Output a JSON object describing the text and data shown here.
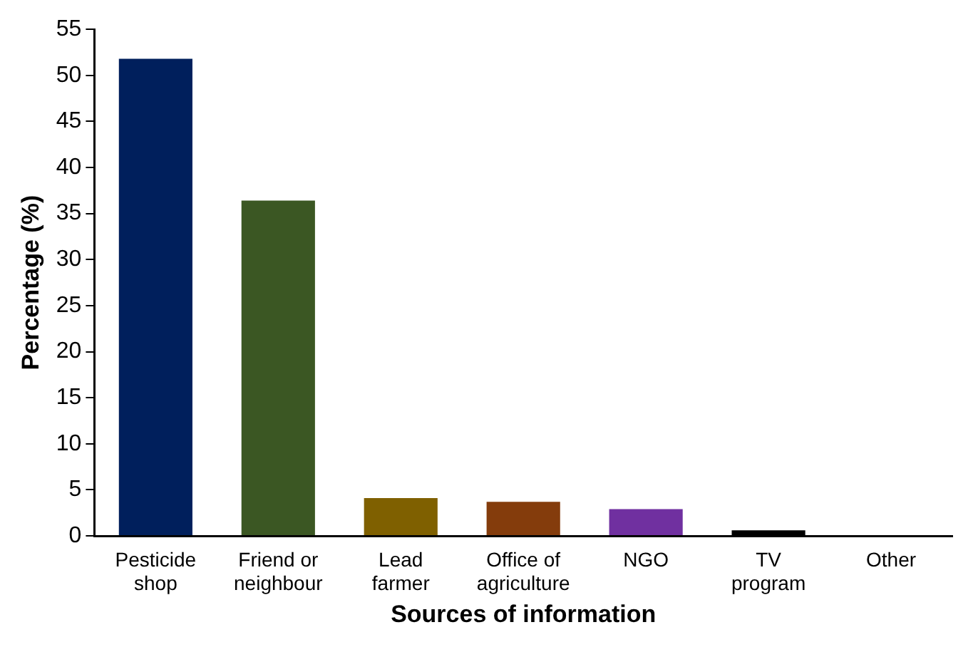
{
  "chart_data": {
    "type": "bar",
    "xlabel": "Sources of information",
    "ylabel": "Percentage (%)",
    "categories": [
      "Pesticide shop",
      "Friend or neighbour",
      "Lead farmer",
      "Office of agriculture",
      "NGO",
      "TV program",
      "Other"
    ],
    "values": [
      51.8,
      36.4,
      4.1,
      3.7,
      2.9,
      0.6,
      0
    ],
    "colors": [
      "#001f5c",
      "#3b5723",
      "#7f6000",
      "#843c0c",
      "#7030a0",
      "#000000",
      "#000000"
    ],
    "ylim": [
      0,
      55
    ],
    "yticks": [
      0,
      5,
      10,
      15,
      20,
      25,
      30,
      35,
      40,
      45,
      50,
      55
    ],
    "grid": false,
    "legend": false
  }
}
